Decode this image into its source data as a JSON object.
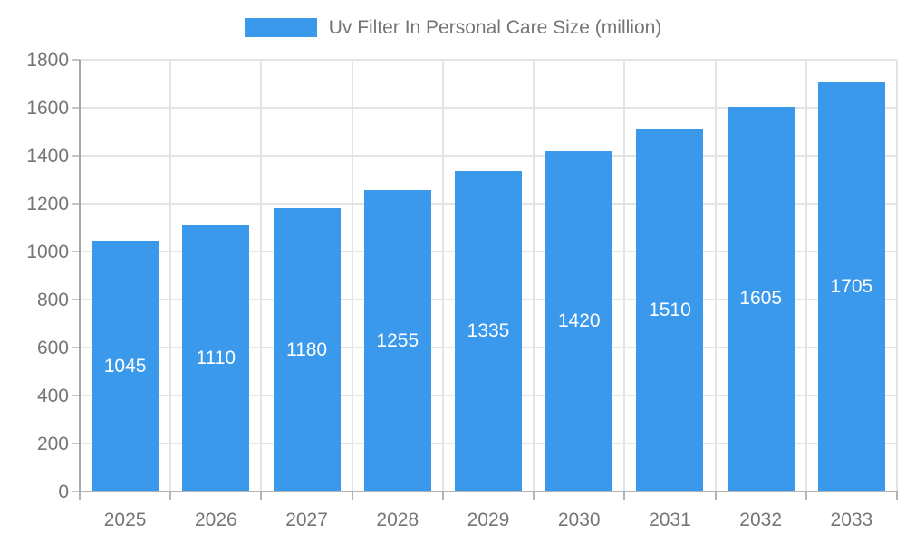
{
  "chart_data": {
    "type": "bar",
    "categories": [
      "2025",
      "2026",
      "2027",
      "2028",
      "2029",
      "2030",
      "2031",
      "2032",
      "2033"
    ],
    "values": [
      1045,
      1110,
      1180,
      1255,
      1335,
      1420,
      1510,
      1605,
      1705
    ],
    "title": "",
    "legend": "Uv Filter In Personal Care Size (million)",
    "legend_position": "top-center",
    "xlabel": "",
    "ylabel": "",
    "ylim": [
      0,
      1800
    ],
    "ytick_step": 200,
    "grid": true,
    "value_labels": "inside-center",
    "colors": {
      "bar": "#3b99ec",
      "bar_value_text": "#ffffff",
      "axis_line": "#a6a6a6",
      "grid_line": "#e4e4e4",
      "tick_text": "#757575",
      "legend_text": "#757575"
    }
  }
}
